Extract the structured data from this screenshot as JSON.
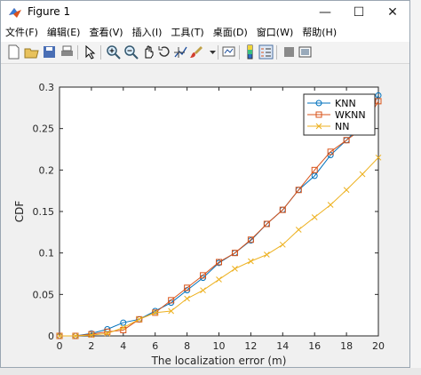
{
  "window": {
    "title": "Figure 1",
    "minimize_glyph": "—",
    "maximize_glyph": "☐",
    "close_glyph": "✕"
  },
  "menu": [
    "文件(F)",
    "编辑(E)",
    "查看(V)",
    "插入(I)",
    "工具(T)",
    "桌面(D)",
    "窗口(W)",
    "帮助(H)"
  ],
  "toolbar": [
    "new-figure-icon",
    "open-file-icon",
    "save-icon",
    "print-icon",
    "select-arrow-icon",
    "zoom-in-icon",
    "zoom-out-icon",
    "pan-hand-icon",
    "rotate-3d-icon",
    "data-cursor-icon",
    "brush-icon",
    "link-plot-icon",
    "colorbar-icon",
    "legend-icon",
    "hide-plot-tools-icon",
    "show-plot-tools-icon"
  ],
  "colors": {
    "knn": "#0072BD",
    "wknn": "#D95319",
    "nn": "#EDB120"
  },
  "chart_data": {
    "type": "line",
    "xlabel": "The localization error (m)",
    "ylabel": "CDF",
    "xlim": [
      0,
      20
    ],
    "ylim": [
      0,
      0.3
    ],
    "xticks": [
      0,
      2,
      4,
      6,
      8,
      10,
      12,
      14,
      16,
      18,
      20
    ],
    "yticks": [
      0,
      0.05,
      0.1,
      0.15,
      0.2,
      0.25,
      0.3
    ],
    "ytick_labels": [
      "0",
      "0.05",
      "0.1",
      "0.15",
      "0.2",
      "0.25",
      "0.3"
    ],
    "legend_position": "top-right",
    "x": [
      0,
      1,
      2,
      3,
      4,
      5,
      6,
      7,
      8,
      9,
      10,
      11,
      12,
      13,
      14,
      15,
      16,
      17,
      18,
      19,
      20
    ],
    "series": [
      {
        "name": "KNN",
        "marker": "circle",
        "color": "#0072BD",
        "values": [
          0,
          0,
          0.003,
          0.008,
          0.016,
          0.02,
          0.03,
          0.04,
          0.055,
          0.07,
          0.088,
          0.1,
          0.115,
          0.135,
          0.152,
          0.176,
          0.193,
          0.218,
          0.236,
          0.255,
          0.29
        ]
      },
      {
        "name": "WKNN",
        "marker": "square",
        "color": "#D95319",
        "values": [
          0,
          0,
          0.002,
          0.005,
          0.007,
          0.02,
          0.028,
          0.043,
          0.058,
          0.073,
          0.089,
          0.1,
          0.116,
          0.135,
          0.152,
          0.176,
          0.2,
          0.222,
          0.236,
          0.25,
          0.283
        ]
      },
      {
        "name": "NN",
        "marker": "x",
        "color": "#EDB120",
        "values": [
          0,
          0,
          0.001,
          0.003,
          0.01,
          0.02,
          0.028,
          0.03,
          0.045,
          0.055,
          0.068,
          0.081,
          0.09,
          0.098,
          0.11,
          0.128,
          0.143,
          0.158,
          0.176,
          0.195,
          0.215
        ]
      }
    ]
  }
}
